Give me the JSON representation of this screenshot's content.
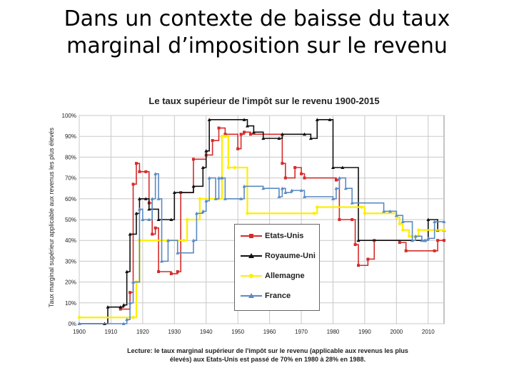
{
  "slide": {
    "title_line1": "Dans un contexte de baisse du taux",
    "title_line2": "marginal d’imposition sur le revenu"
  },
  "caption": {
    "line1": "Lecture: le taux marginal supérieur de l'impôt sur le revenu (applicable aux revenus les plus",
    "line2": "élevés) aux Etats-Unis est passé de 70% en 1980 à 28% en 1988."
  },
  "chart_data": {
    "type": "line",
    "title": "Le taux supérieur de l'impôt sur le revenu 1900-2015",
    "ylabel": "Taux marginal supérieur applicable aux revenus les plus élevés",
    "xlabel": "",
    "xlim": [
      1900,
      2015
    ],
    "ylim": [
      0,
      100
    ],
    "x_ticks": [
      1900,
      1910,
      1920,
      1930,
      1940,
      1950,
      1960,
      1970,
      1980,
      1990,
      2000,
      2010
    ],
    "y_ticks": [
      "0%",
      "10%",
      "20%",
      "30%",
      "40%",
      "50%",
      "60%",
      "70%",
      "80%",
      "90%",
      "100%"
    ],
    "grid": true,
    "legend_position": "center",
    "series": [
      {
        "name": "Etats-Unis",
        "color": "#d62b2b",
        "marker": "square",
        "points": [
          [
            1913,
            7
          ],
          [
            1916,
            15
          ],
          [
            1917,
            67
          ],
          [
            1918,
            77
          ],
          [
            1919,
            73
          ],
          [
            1921,
            73
          ],
          [
            1922,
            58
          ],
          [
            1923,
            43
          ],
          [
            1924,
            46
          ],
          [
            1925,
            25
          ],
          [
            1929,
            24
          ],
          [
            1931,
            25
          ],
          [
            1932,
            63
          ],
          [
            1936,
            79
          ],
          [
            1940,
            81
          ],
          [
            1942,
            88
          ],
          [
            1944,
            94
          ],
          [
            1946,
            91
          ],
          [
            1950,
            84
          ],
          [
            1951,
            91
          ],
          [
            1952,
            92
          ],
          [
            1954,
            91
          ],
          [
            1964,
            77
          ],
          [
            1965,
            70
          ],
          [
            1968,
            75
          ],
          [
            1970,
            72
          ],
          [
            1971,
            70
          ],
          [
            1981,
            69
          ],
          [
            1982,
            50
          ],
          [
            1986,
            50
          ],
          [
            1987,
            38
          ],
          [
            1988,
            28
          ],
          [
            1991,
            31
          ],
          [
            1993,
            40
          ],
          [
            2001,
            39
          ],
          [
            2003,
            35
          ],
          [
            2012,
            35
          ],
          [
            2013,
            40
          ],
          [
            2015,
            40
          ]
        ]
      },
      {
        "name": "Royaume-Uni",
        "color": "#111111",
        "marker": "triangle",
        "points": [
          [
            1900,
            0
          ],
          [
            1908,
            0
          ],
          [
            1909,
            8
          ],
          [
            1913,
            8
          ],
          [
            1914,
            9
          ],
          [
            1915,
            25
          ],
          [
            1916,
            43
          ],
          [
            1918,
            53
          ],
          [
            1919,
            60
          ],
          [
            1921,
            60
          ],
          [
            1922,
            55
          ],
          [
            1925,
            50
          ],
          [
            1929,
            50
          ],
          [
            1930,
            63
          ],
          [
            1936,
            66
          ],
          [
            1939,
            75
          ],
          [
            1940,
            83
          ],
          [
            1941,
            98
          ],
          [
            1952,
            98
          ],
          [
            1953,
            95
          ],
          [
            1955,
            92
          ],
          [
            1958,
            89
          ],
          [
            1963,
            89
          ],
          [
            1964,
            91
          ],
          [
            1971,
            91
          ],
          [
            1973,
            89
          ],
          [
            1975,
            98
          ],
          [
            1979,
            98
          ],
          [
            1980,
            75
          ],
          [
            1983,
            75
          ],
          [
            1988,
            40
          ],
          [
            2009,
            40
          ],
          [
            2010,
            50
          ],
          [
            2013,
            45
          ],
          [
            2015,
            45
          ]
        ]
      },
      {
        "name": "Allemagne",
        "color": "#ffee00",
        "marker": "circle",
        "points": [
          [
            1900,
            3
          ],
          [
            1917,
            3
          ],
          [
            1918,
            20
          ],
          [
            1919,
            40
          ],
          [
            1933,
            40
          ],
          [
            1934,
            50
          ],
          [
            1938,
            60
          ],
          [
            1944,
            60
          ],
          [
            1945,
            90
          ],
          [
            1946,
            90
          ],
          [
            1947,
            75
          ],
          [
            1949,
            75
          ],
          [
            1953,
            53
          ],
          [
            1974,
            53
          ],
          [
            1975,
            56
          ],
          [
            1989,
            56
          ],
          [
            1990,
            53
          ],
          [
            2000,
            51
          ],
          [
            2001,
            48
          ],
          [
            2002,
            45
          ],
          [
            2004,
            42
          ],
          [
            2005,
            42
          ],
          [
            2007,
            45
          ],
          [
            2015,
            45
          ]
        ]
      },
      {
        "name": "France",
        "color": "#5b8ac2",
        "marker": "triangle",
        "points": [
          [
            1900,
            0
          ],
          [
            1914,
            0
          ],
          [
            1915,
            2
          ],
          [
            1916,
            10
          ],
          [
            1917,
            20
          ],
          [
            1919,
            55
          ],
          [
            1920,
            50
          ],
          [
            1922,
            50
          ],
          [
            1923,
            60
          ],
          [
            1924,
            72
          ],
          [
            1925,
            60
          ],
          [
            1926,
            30
          ],
          [
            1928,
            40
          ],
          [
            1931,
            34
          ],
          [
            1936,
            40
          ],
          [
            1937,
            53
          ],
          [
            1939,
            54
          ],
          [
            1940,
            59
          ],
          [
            1941,
            70
          ],
          [
            1943,
            60
          ],
          [
            1944,
            70
          ],
          [
            1945,
            70
          ],
          [
            1946,
            60
          ],
          [
            1951,
            60
          ],
          [
            1952,
            66
          ],
          [
            1958,
            65
          ],
          [
            1963,
            61
          ],
          [
            1964,
            65
          ],
          [
            1965,
            63
          ],
          [
            1967,
            64
          ],
          [
            1970,
            64
          ],
          [
            1971,
            61
          ],
          [
            1980,
            60
          ],
          [
            1981,
            65
          ],
          [
            1982,
            70
          ],
          [
            1984,
            65
          ],
          [
            1986,
            58
          ],
          [
            1996,
            54
          ],
          [
            1998,
            54
          ],
          [
            2000,
            52
          ],
          [
            2002,
            49
          ],
          [
            2005,
            40
          ],
          [
            2006,
            42
          ],
          [
            2008,
            40
          ],
          [
            2009,
            40
          ],
          [
            2010,
            41
          ],
          [
            2012,
            49
          ],
          [
            2015,
            49
          ]
        ]
      }
    ]
  }
}
